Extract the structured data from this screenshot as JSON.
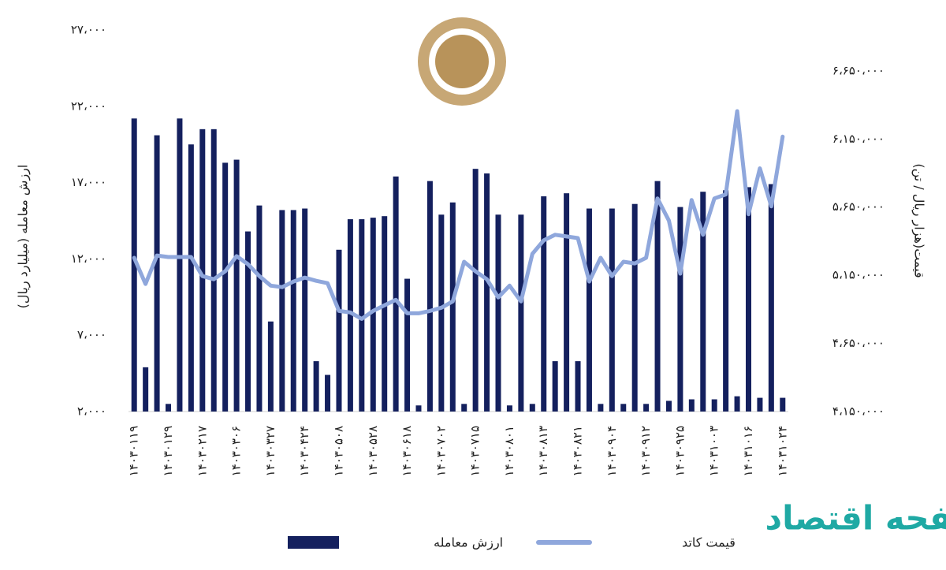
{
  "chart_data": {
    "type": "bar-line",
    "y_label": "ارزش معامله (میلیارد ریال)",
    "y2_label": "قیمت(هزار ریال / تن)",
    "watermark": "صفحه اقتصاد",
    "categories": [
      "۱۴۰۳۰۱۱۹",
      null,
      null,
      "۱۴۰۳۰۱۲۹",
      null,
      null,
      "۱۴۰۳۰۲۱۷",
      null,
      null,
      "۱۴۰۳۰۳۰۶",
      null,
      null,
      "۱۴۰۳۰۳۲۷",
      null,
      null,
      "۱۴۰۳۰۴۲۴",
      null,
      null,
      "۱۴۰۳۰۵۰۸",
      null,
      null,
      "۱۴۰۳۰۵۲۸",
      null,
      null,
      "۱۴۰۳۰۶۱۸",
      null,
      null,
      "۱۴۰۳۰۷۰۲",
      null,
      null,
      "۱۴۰۳۰۷۱۵",
      null,
      null,
      "۱۴۰۳۰۸۰۱",
      null,
      null,
      "۱۴۰۳۰۸۱۳",
      null,
      null,
      "۱۴۰۳۰۸۲۱",
      null,
      null,
      "۱۴۰۳۰۹۰۴",
      null,
      null,
      "۱۴۰۳۰۹۱۲",
      null,
      null,
      "۱۴۰۳۰۹۲۵",
      null,
      null,
      "۱۴۰۳۱۰۰۳",
      null,
      null,
      "۱۴۰۳۱۰۱۶",
      null,
      null,
      "۱۴۰۳۱۰۲۴"
    ],
    "series": [
      {
        "name": "ارزش معامله",
        "color": "#14205e",
        "kind": "bar",
        "axis": "y",
        "values": [
          21200,
          4900,
          20100,
          2500,
          21200,
          19500,
          20500,
          20500,
          18300,
          18500,
          13800,
          15500,
          7900,
          15200,
          15200,
          15300,
          5300,
          4400,
          12600,
          14600,
          14600,
          14700,
          14800,
          17400,
          10700,
          2400,
          17100,
          14900,
          15700,
          2500,
          17900,
          17600,
          14900,
          2400,
          14900,
          2500,
          16100,
          5300,
          16300,
          5300,
          15300,
          2500,
          15300,
          2500,
          15600,
          2500,
          17100,
          2700,
          15400,
          2800,
          16400,
          2800,
          16500,
          3000,
          16700,
          2900,
          16900,
          2900
        ]
      },
      {
        "name": "قیمت  کاتد",
        "color": "#8fa7dc",
        "kind": "line",
        "axis": "y2",
        "values": [
          5278000,
          5086000,
          5295000,
          5284000,
          5284000,
          5284000,
          5144000,
          5121000,
          5179000,
          5290000,
          5231000,
          5144000,
          5074000,
          5063000,
          5104000,
          5133000,
          5109000,
          5092000,
          4888000,
          4877000,
          4830000,
          4888000,
          4929000,
          4970000,
          4871000,
          4871000,
          4888000,
          4912000,
          4958000,
          5249000,
          5179000,
          5121000,
          4987000,
          5074000,
          4958000,
          5307000,
          5406000,
          5447000,
          5435000,
          5423000,
          5104000,
          5278000,
          5144000,
          5249000,
          5237000,
          5278000,
          5714000,
          5551000,
          5162000,
          5702000,
          5447000,
          5714000,
          5743000,
          6354000,
          5598000,
          5935000,
          5656000,
          6167000
        ]
      }
    ],
    "ylim": [
      2000,
      27000
    ],
    "yticks": [
      {
        "value": 2000,
        "label": "۲،۰۰۰"
      },
      {
        "value": 7000,
        "label": "۷،۰۰۰"
      },
      {
        "value": 12000,
        "label": "۱۲،۰۰۰"
      },
      {
        "value": 17000,
        "label": "۱۷،۰۰۰"
      },
      {
        "value": 22000,
        "label": "۲۲،۰۰۰"
      },
      {
        "value": 27000,
        "label": "۲۷،۰۰۰"
      }
    ],
    "y2lim": [
      4150000,
      6950000
    ],
    "y2ticks": [
      {
        "value": 4150000,
        "label": "۴،۱۵۰،۰۰۰"
      },
      {
        "value": 4650000,
        "label": "۴،۶۵۰،۰۰۰"
      },
      {
        "value": 5150000,
        "label": "۵،۱۵۰،۰۰۰"
      },
      {
        "value": 5650000,
        "label": "۵،۶۵۰،۰۰۰"
      },
      {
        "value": 6150000,
        "label": "۶،۱۵۰،۰۰۰"
      },
      {
        "value": 6650000,
        "label": "۶،۶۵۰،۰۰۰"
      }
    ]
  }
}
